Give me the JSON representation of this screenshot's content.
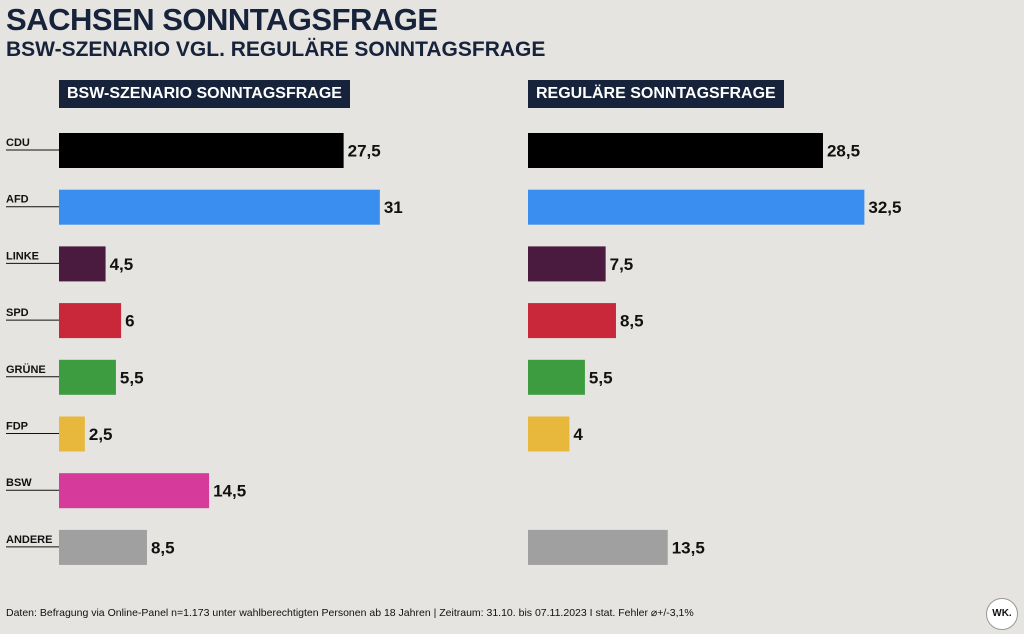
{
  "header": {
    "title": "SACHSEN SONNTAGSFRAGE",
    "subtitle": "BSW-SZENARIO VGL. REGULÄRE SONNTAGSFRAGE"
  },
  "chart_data": [
    {
      "type": "bar",
      "orientation": "horizontal",
      "title": "BSW-SZENARIO SONNTAGSFRAGE",
      "categories": [
        "CDU",
        "AFD",
        "LINKE",
        "SPD",
        "GRÜNE",
        "FDP",
        "BSW",
        "ANDERE"
      ],
      "values": [
        27.5,
        31,
        4.5,
        6,
        5.5,
        2.5,
        14.5,
        8.5
      ],
      "value_labels": [
        "27,5",
        "31",
        "4,5",
        "6",
        "5,5",
        "2,5",
        "14,5",
        "8,5"
      ],
      "colors": [
        "#000000",
        "#3a8ef0",
        "#4b1a3f",
        "#c8283a",
        "#3d9c40",
        "#e7b83c",
        "#d63a9a",
        "#a0a0a0"
      ]
    },
    {
      "type": "bar",
      "orientation": "horizontal",
      "title": "REGULÄRE SONNTAGSFRAGE",
      "categories": [
        "CDU",
        "AFD",
        "LINKE",
        "SPD",
        "GRÜNE",
        "FDP",
        "BSW",
        "ANDERE"
      ],
      "values": [
        28.5,
        32.5,
        7.5,
        8.5,
        5.5,
        4,
        null,
        13.5
      ],
      "value_labels": [
        "28,5",
        "32,5",
        "7,5",
        "8,5",
        "5,5",
        "4",
        "",
        "13,5"
      ],
      "colors": [
        "#000000",
        "#3a8ef0",
        "#4b1a3f",
        "#c8283a",
        "#3d9c40",
        "#e7b83c",
        "#d63a9a",
        "#a0a0a0"
      ]
    }
  ],
  "footer": {
    "source": "Daten: Befragung via Online-Panel n=1.173 unter wahlberechtigten Personen ab 18 Jahren | Zeitraum: 31.10. bis 07.11.2023 I stat. Fehler ⌀+/-3,1%"
  },
  "logo": {
    "text": "WK."
  }
}
